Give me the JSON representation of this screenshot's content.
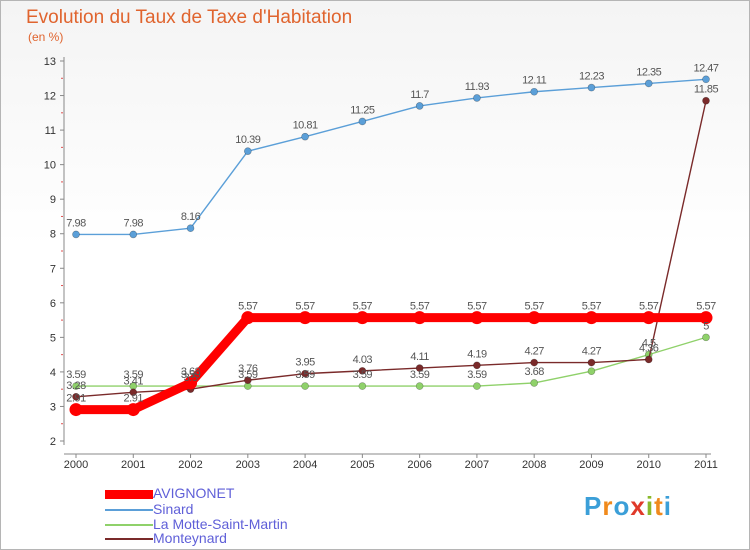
{
  "header": {
    "title": "Evolution du Taux de Taxe d'Habitation",
    "subtitle": "(en %)"
  },
  "logo": {
    "text": "Proxiti",
    "letters": [
      "P",
      "r",
      "o",
      "x",
      "i",
      "t",
      "i"
    ],
    "colors": [
      "#3b9fd8",
      "#f08a1c",
      "#3b9fd8",
      "#e03a2a",
      "#89b92a",
      "#f08a1c",
      "#3b9fd8"
    ]
  },
  "chart_data": {
    "type": "line",
    "title": "Evolution du Taux de Taxe d'Habitation",
    "ylabel": "(en %)",
    "xlabel": "",
    "x": [
      "2000",
      "2001",
      "2002",
      "2003",
      "2004",
      "2005",
      "2006",
      "2007",
      "2008",
      "2009",
      "2010",
      "2011"
    ],
    "ylim": [
      2,
      13
    ],
    "yticks": [
      2,
      3,
      4,
      5,
      6,
      7,
      8,
      9,
      10,
      11,
      12,
      13
    ],
    "grid": false,
    "legend_position": "bottom-left",
    "series": [
      {
        "name": "AVIGNONET",
        "color": "#ff0000",
        "values": [
          2.91,
          2.91,
          3.68,
          5.57,
          5.57,
          5.57,
          5.57,
          5.57,
          5.57,
          5.57,
          5.57,
          5.57
        ],
        "labels": [
          "2.91",
          "2.91",
          "3.68",
          "5.57",
          "5.57",
          "5.57",
          "5.57",
          "5.57",
          "5.57",
          "5.57",
          "5.57",
          "5.57"
        ]
      },
      {
        "name": "Sinard",
        "color": "#5b9fd8",
        "values": [
          7.98,
          7.98,
          8.16,
          10.39,
          10.81,
          11.25,
          11.7,
          11.93,
          12.11,
          12.23,
          12.35,
          12.47
        ],
        "labels": [
          "7.98",
          "7.98",
          "8.16",
          "10.39",
          "10.81",
          "11.25",
          "11.7",
          "11.93",
          "12.11",
          "12.23",
          "12.35",
          "12.47"
        ]
      },
      {
        "name": "La Motte-Saint-Martin",
        "color": "#8fd16a",
        "values": [
          3.59,
          3.59,
          3.59,
          3.59,
          3.59,
          3.59,
          3.59,
          3.59,
          3.68,
          4.02,
          4.5,
          5
        ],
        "labels": [
          "3.59",
          "3.59",
          "3.59",
          "3.59",
          "3.59",
          "3.59",
          "3.59",
          "3.59",
          "3.68",
          "",
          "4.5",
          "5"
        ]
      },
      {
        "name": "Monteynard",
        "color": "#7a2a2a",
        "values": [
          3.28,
          3.41,
          3.5,
          3.76,
          3.95,
          4.03,
          4.11,
          4.19,
          4.27,
          4.27,
          4.36,
          11.85
        ],
        "labels": [
          "3.28",
          "3.41",
          "3.5",
          "3.76",
          "3.95",
          "4.03",
          "4.11",
          "4.19",
          "4.27",
          "4.27",
          "4.36",
          "11.85"
        ]
      }
    ]
  }
}
